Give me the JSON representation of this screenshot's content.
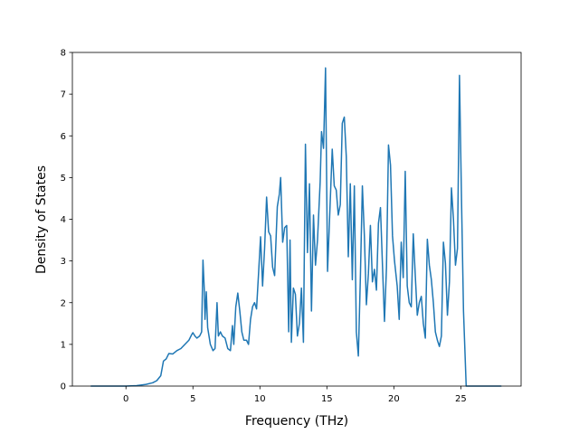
{
  "chart_data": {
    "type": "line",
    "xlabel": "Frequency (THz)",
    "ylabel": "Density of States",
    "xlim": [
      -4.0,
      29.5
    ],
    "ylim": [
      0,
      8
    ],
    "x_ticks": [
      0,
      5,
      10,
      15,
      20,
      25
    ],
    "y_ticks": [
      0,
      1,
      2,
      3,
      4,
      5,
      6,
      7,
      8
    ],
    "x_tick_labels": [
      "0",
      "5",
      "10",
      "15",
      "20",
      "25"
    ],
    "y_tick_labels": [
      "0",
      "1",
      "2",
      "3",
      "4",
      "5",
      "6",
      "7",
      "8"
    ],
    "grid": false,
    "series": [
      {
        "color": "#1f77b4",
        "points": [
          [
            -2.6,
            0
          ],
          [
            -1.0,
            0
          ],
          [
            0.0,
            0
          ],
          [
            0.8,
            0.01
          ],
          [
            1.5,
            0.04
          ],
          [
            2.0,
            0.08
          ],
          [
            2.3,
            0.13
          ],
          [
            2.6,
            0.25
          ],
          [
            2.8,
            0.6
          ],
          [
            3.0,
            0.65
          ],
          [
            3.2,
            0.78
          ],
          [
            3.5,
            0.77
          ],
          [
            3.8,
            0.85
          ],
          [
            4.1,
            0.9
          ],
          [
            4.4,
            1.0
          ],
          [
            4.7,
            1.1
          ],
          [
            4.9,
            1.23
          ],
          [
            5.0,
            1.28
          ],
          [
            5.15,
            1.2
          ],
          [
            5.3,
            1.15
          ],
          [
            5.5,
            1.2
          ],
          [
            5.65,
            1.3
          ],
          [
            5.75,
            3.02
          ],
          [
            5.85,
            2.3
          ],
          [
            5.9,
            1.6
          ],
          [
            6.0,
            2.26
          ],
          [
            6.1,
            1.4
          ],
          [
            6.3,
            1.0
          ],
          [
            6.5,
            0.85
          ],
          [
            6.65,
            0.9
          ],
          [
            6.8,
            2.0
          ],
          [
            6.9,
            1.2
          ],
          [
            7.05,
            1.3
          ],
          [
            7.2,
            1.2
          ],
          [
            7.4,
            1.15
          ],
          [
            7.6,
            0.9
          ],
          [
            7.8,
            0.85
          ],
          [
            7.95,
            1.45
          ],
          [
            8.05,
            1.0
          ],
          [
            8.2,
            1.9
          ],
          [
            8.35,
            2.23
          ],
          [
            8.5,
            1.8
          ],
          [
            8.65,
            1.3
          ],
          [
            8.8,
            1.1
          ],
          [
            9.0,
            1.1
          ],
          [
            9.15,
            1.0
          ],
          [
            9.3,
            1.6
          ],
          [
            9.45,
            1.9
          ],
          [
            9.6,
            2.0
          ],
          [
            9.75,
            1.85
          ],
          [
            9.9,
            2.7
          ],
          [
            10.05,
            3.58
          ],
          [
            10.2,
            2.4
          ],
          [
            10.35,
            3.3
          ],
          [
            10.5,
            4.53
          ],
          [
            10.65,
            3.7
          ],
          [
            10.8,
            3.6
          ],
          [
            10.95,
            2.85
          ],
          [
            11.1,
            2.65
          ],
          [
            11.3,
            4.3
          ],
          [
            11.45,
            4.6
          ],
          [
            11.55,
            5.0
          ],
          [
            11.7,
            3.45
          ],
          [
            11.85,
            3.8
          ],
          [
            12.0,
            3.85
          ],
          [
            12.15,
            1.3
          ],
          [
            12.25,
            3.5
          ],
          [
            12.35,
            1.05
          ],
          [
            12.5,
            2.35
          ],
          [
            12.65,
            2.2
          ],
          [
            12.8,
            1.2
          ],
          [
            12.95,
            1.5
          ],
          [
            13.1,
            2.35
          ],
          [
            13.25,
            1.05
          ],
          [
            13.4,
            5.8
          ],
          [
            13.55,
            3.2
          ],
          [
            13.7,
            4.85
          ],
          [
            13.85,
            1.8
          ],
          [
            14.0,
            4.1
          ],
          [
            14.15,
            2.9
          ],
          [
            14.3,
            3.5
          ],
          [
            14.5,
            4.9
          ],
          [
            14.6,
            6.1
          ],
          [
            14.75,
            5.7
          ],
          [
            14.9,
            7.63
          ],
          [
            15.05,
            2.75
          ],
          [
            15.2,
            4.0
          ],
          [
            15.4,
            5.68
          ],
          [
            15.55,
            4.8
          ],
          [
            15.7,
            4.7
          ],
          [
            15.85,
            4.1
          ],
          [
            16.0,
            4.35
          ],
          [
            16.15,
            6.3
          ],
          [
            16.3,
            6.45
          ],
          [
            16.45,
            5.5
          ],
          [
            16.6,
            3.1
          ],
          [
            16.75,
            4.85
          ],
          [
            16.9,
            2.55
          ],
          [
            17.05,
            4.8
          ],
          [
            17.2,
            1.3
          ],
          [
            17.35,
            0.72
          ],
          [
            17.5,
            2.6
          ],
          [
            17.65,
            4.8
          ],
          [
            17.8,
            3.6
          ],
          [
            17.95,
            1.95
          ],
          [
            18.1,
            2.7
          ],
          [
            18.25,
            3.85
          ],
          [
            18.4,
            2.5
          ],
          [
            18.55,
            2.8
          ],
          [
            18.7,
            2.3
          ],
          [
            18.85,
            3.9
          ],
          [
            19.0,
            4.28
          ],
          [
            19.15,
            2.9
          ],
          [
            19.3,
            1.55
          ],
          [
            19.45,
            2.85
          ],
          [
            19.6,
            5.78
          ],
          [
            19.75,
            5.3
          ],
          [
            19.9,
            3.6
          ],
          [
            20.05,
            3.0
          ],
          [
            20.25,
            2.4
          ],
          [
            20.4,
            1.6
          ],
          [
            20.55,
            3.45
          ],
          [
            20.7,
            2.6
          ],
          [
            20.85,
            5.15
          ],
          [
            21.0,
            2.4
          ],
          [
            21.15,
            2.0
          ],
          [
            21.3,
            1.9
          ],
          [
            21.45,
            3.65
          ],
          [
            21.6,
            2.65
          ],
          [
            21.75,
            1.7
          ],
          [
            21.9,
            2.0
          ],
          [
            22.05,
            2.15
          ],
          [
            22.2,
            1.5
          ],
          [
            22.35,
            1.15
          ],
          [
            22.5,
            3.52
          ],
          [
            22.65,
            2.9
          ],
          [
            22.8,
            2.55
          ],
          [
            22.95,
            2.0
          ],
          [
            23.1,
            1.3
          ],
          [
            23.25,
            1.1
          ],
          [
            23.4,
            0.95
          ],
          [
            23.55,
            1.2
          ],
          [
            23.7,
            3.45
          ],
          [
            23.85,
            2.95
          ],
          [
            24.0,
            1.7
          ],
          [
            24.15,
            2.5
          ],
          [
            24.3,
            4.75
          ],
          [
            24.45,
            4.0
          ],
          [
            24.6,
            2.9
          ],
          [
            24.75,
            3.3
          ],
          [
            24.9,
            7.45
          ],
          [
            25.05,
            4.5
          ],
          [
            25.2,
            1.8
          ],
          [
            25.4,
            0.0
          ],
          [
            26.5,
            0
          ],
          [
            28.0,
            0
          ]
        ]
      }
    ]
  }
}
